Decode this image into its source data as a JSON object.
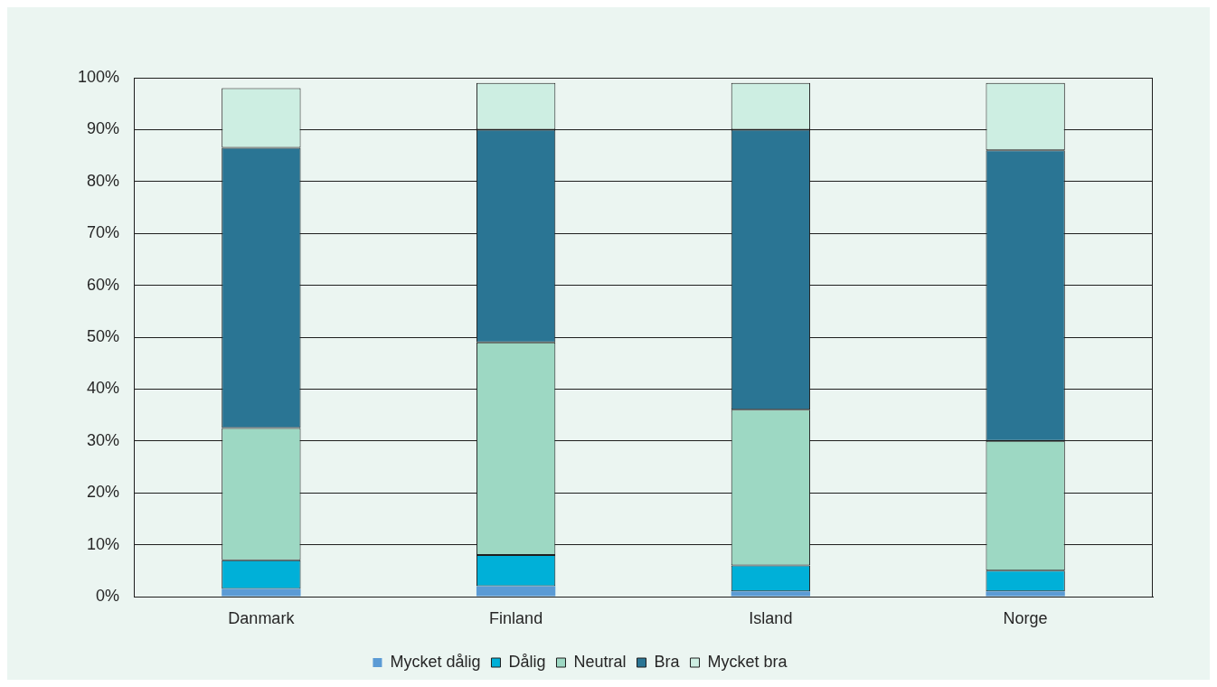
{
  "chart_data": {
    "type": "bar",
    "stacked": true,
    "categories": [
      "Danmark",
      "Finland",
      "Island",
      "Norge"
    ],
    "series": [
      {
        "name": "Mycket dålig",
        "color": "#5b9bd5",
        "values": [
          1.5,
          2,
          1,
          1
        ]
      },
      {
        "name": "Dålig",
        "color": "#00b0d8",
        "values": [
          5.5,
          6,
          5,
          4
        ]
      },
      {
        "name": "Neutral",
        "color": "#9dd8c3",
        "values": [
          25.5,
          41,
          30,
          25
        ]
      },
      {
        "name": "Bra",
        "color": "#2a7594",
        "values": [
          54,
          41,
          54,
          56
        ]
      },
      {
        "name": "Mycket bra",
        "color": "#cdeee2",
        "values": [
          11.5,
          9,
          9,
          13
        ]
      }
    ],
    "ylim": [
      0,
      100
    ],
    "yticks": [
      {
        "value": 0,
        "label": "0%"
      },
      {
        "value": 10,
        "label": "10%"
      },
      {
        "value": 20,
        "label": "20%"
      },
      {
        "value": 30,
        "label": "30%"
      },
      {
        "value": 40,
        "label": "40%"
      },
      {
        "value": 50,
        "label": "50%"
      },
      {
        "value": 60,
        "label": "60%"
      },
      {
        "value": 70,
        "label": "70%"
      },
      {
        "value": 80,
        "label": "80%"
      },
      {
        "value": 90,
        "label": "90%"
      },
      {
        "value": 100,
        "label": "100%"
      }
    ],
    "grid": "y",
    "legend": "bottom"
  }
}
